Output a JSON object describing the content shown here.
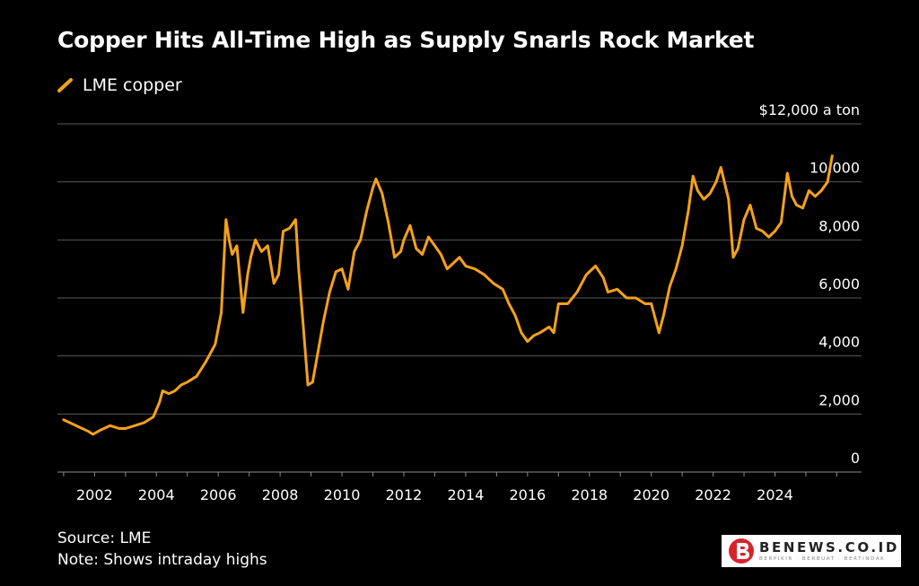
{
  "chart_data": {
    "type": "line",
    "title": "Copper Hits All-Time High as Supply Snarls Rock Market",
    "legend_placement": "top-left",
    "grid": true,
    "xlim": [
      2000.8,
      2026.8
    ],
    "ylim": [
      0,
      12000
    ],
    "y_unit_label": "$12,000 a ton",
    "y_tick_labels": [
      {
        "value": 0,
        "label": "0"
      },
      {
        "value": 2000,
        "label": "2,000"
      },
      {
        "value": 4000,
        "label": "4,000"
      },
      {
        "value": 6000,
        "label": "6,000"
      },
      {
        "value": 8000,
        "label": "8,000"
      },
      {
        "value": 10000,
        "label": "10,000"
      }
    ],
    "x_tick_labels": [
      {
        "value": 2002,
        "label": "2002"
      },
      {
        "value": 2004,
        "label": "2004"
      },
      {
        "value": 2006,
        "label": "2006"
      },
      {
        "value": 2008,
        "label": "2008"
      },
      {
        "value": 2010,
        "label": "2010"
      },
      {
        "value": 2012,
        "label": "2012"
      },
      {
        "value": 2014,
        "label": "2014"
      },
      {
        "value": 2016,
        "label": "2016"
      },
      {
        "value": 2018,
        "label": "2018"
      },
      {
        "value": 2020,
        "label": "2020"
      },
      {
        "value": 2022,
        "label": "2022"
      },
      {
        "value": 2024,
        "label": "2024"
      }
    ],
    "series": [
      {
        "name": "LME copper",
        "color": "#f5a11a",
        "x": [
          2001.0,
          2001.2,
          2001.5,
          2001.8,
          2001.95,
          2002.2,
          2002.5,
          2002.8,
          2003.0,
          2003.3,
          2003.6,
          2003.9,
          2004.1,
          2004.2,
          2004.4,
          2004.6,
          2004.8,
          2005.0,
          2005.3,
          2005.6,
          2005.9,
          2006.1,
          2006.25,
          2006.35,
          2006.45,
          2006.6,
          2006.8,
          2006.95,
          2007.05,
          2007.2,
          2007.4,
          2007.6,
          2007.8,
          2007.95,
          2008.1,
          2008.3,
          2008.5,
          2008.6,
          2008.75,
          2008.9,
          2009.05,
          2009.2,
          2009.4,
          2009.6,
          2009.8,
          2010.0,
          2010.2,
          2010.4,
          2010.6,
          2010.8,
          2011.0,
          2011.1,
          2011.3,
          2011.5,
          2011.7,
          2011.9,
          2012.0,
          2012.2,
          2012.4,
          2012.6,
          2012.8,
          2013.0,
          2013.2,
          2013.4,
          2013.6,
          2013.8,
          2014.0,
          2014.3,
          2014.6,
          2014.9,
          2015.2,
          2015.4,
          2015.6,
          2015.8,
          2016.0,
          2016.2,
          2016.4,
          2016.7,
          2016.85,
          2017.0,
          2017.3,
          2017.6,
          2017.9,
          2018.2,
          2018.45,
          2018.6,
          2018.9,
          2019.2,
          2019.5,
          2019.8,
          2020.0,
          2020.25,
          2020.4,
          2020.6,
          2020.8,
          2021.0,
          2021.2,
          2021.35,
          2021.5,
          2021.7,
          2021.9,
          2022.1,
          2022.25,
          2022.5,
          2022.65,
          2022.8,
          2023.0,
          2023.2,
          2023.4,
          2023.6,
          2023.8,
          2024.0,
          2024.2,
          2024.4,
          2024.55,
          2024.7,
          2024.9,
          2025.1,
          2025.3,
          2025.5,
          2025.7,
          2025.85
        ],
        "values": [
          1800,
          1700,
          1550,
          1400,
          1300,
          1450,
          1600,
          1500,
          1500,
          1600,
          1700,
          1900,
          2400,
          2800,
          2700,
          2800,
          3000,
          3100,
          3300,
          3800,
          4400,
          5500,
          8700,
          8000,
          7500,
          7800,
          5500,
          6800,
          7400,
          8000,
          7600,
          7800,
          6500,
          6800,
          8300,
          8400,
          8700,
          7000,
          5000,
          3000,
          3100,
          4000,
          5200,
          6200,
          6900,
          7000,
          6300,
          7600,
          8000,
          9000,
          9800,
          10100,
          9600,
          8600,
          7400,
          7600,
          8000,
          8500,
          7700,
          7500,
          8100,
          7800,
          7500,
          7000,
          7200,
          7400,
          7100,
          7000,
          6800,
          6500,
          6300,
          5800,
          5400,
          4800,
          4500,
          4700,
          4800,
          5000,
          4800,
          5800,
          5800,
          6200,
          6800,
          7100,
          6700,
          6200,
          6300,
          6000,
          6000,
          5800,
          5800,
          4800,
          5400,
          6400,
          7000,
          7800,
          9000,
          10200,
          9700,
          9400,
          9600,
          10000,
          10500,
          9400,
          7400,
          7700,
          8700,
          9200,
          8400,
          8300,
          8100,
          8300,
          8600,
          10300,
          9500,
          9200,
          9100,
          9700,
          9500,
          9700,
          10000,
          10900
        ]
      }
    ],
    "source": "Source: LME",
    "note": "Note: Shows intraday highs"
  },
  "watermark": {
    "name": "BENEWS.CO.ID",
    "tagline": "BERPIKIR · BERBUAT · BERTINDAK"
  }
}
